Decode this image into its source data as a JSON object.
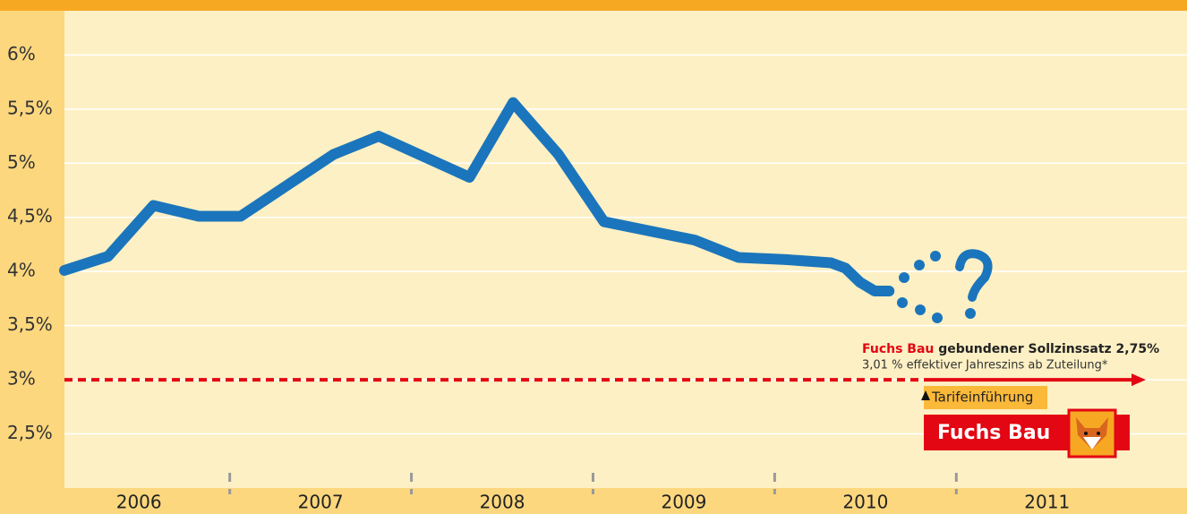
{
  "chart_data": {
    "type": "line",
    "x": [
      2006.09,
      2006.33,
      2006.58,
      2006.83,
      2007.06,
      2007.57,
      2007.82,
      2008.32,
      2008.56,
      2008.81,
      2009.06,
      2009.56,
      2009.8,
      2010.06,
      2010.31,
      2010.39,
      2010.47,
      2010.55,
      2010.63
    ],
    "values": [
      4.01,
      4.14,
      4.61,
      4.51,
      4.51,
      5.08,
      5.25,
      4.87,
      5.56,
      5.08,
      4.46,
      4.29,
      4.13,
      4.11,
      4.08,
      4.03,
      3.9,
      3.82,
      3.82
    ],
    "color": "#1b75bc",
    "xlim": [
      2006.09,
      2012.27
    ],
    "xticks": [
      {
        "value": 2006.5,
        "label": "2006"
      },
      {
        "value": 2007.5,
        "label": "2007"
      },
      {
        "value": 2008.5,
        "label": "2008"
      },
      {
        "value": 2009.5,
        "label": "2009"
      },
      {
        "value": 2010.5,
        "label": "2010"
      },
      {
        "value": 2011.5,
        "label": "2011"
      }
    ],
    "ylim": [
      2,
      6.4
    ],
    "yticks": [
      {
        "value": 2.5,
        "label": "2,5%"
      },
      {
        "value": 3,
        "label": "3%"
      },
      {
        "value": 3.5,
        "label": "3,5%"
      },
      {
        "value": 4,
        "label": "4%"
      },
      {
        "value": 4.5,
        "label": "4,5%"
      },
      {
        "value": 5,
        "label": "5%"
      },
      {
        "value": 5.5,
        "label": "5,5%"
      },
      {
        "value": 6,
        "label": "6%"
      }
    ],
    "grid": true,
    "reference_line": {
      "value": 3,
      "color": "#e30613"
    },
    "annotations": {
      "brand": "Fuchs Bau",
      "rate_text": "gebundener Sollzinssatz 2,75%",
      "effective_text": "3,01 % effektiver Jahreszins ab Zuteilung*",
      "launch": "Tarifeinführung",
      "logo": "Fuchs Bau"
    }
  }
}
